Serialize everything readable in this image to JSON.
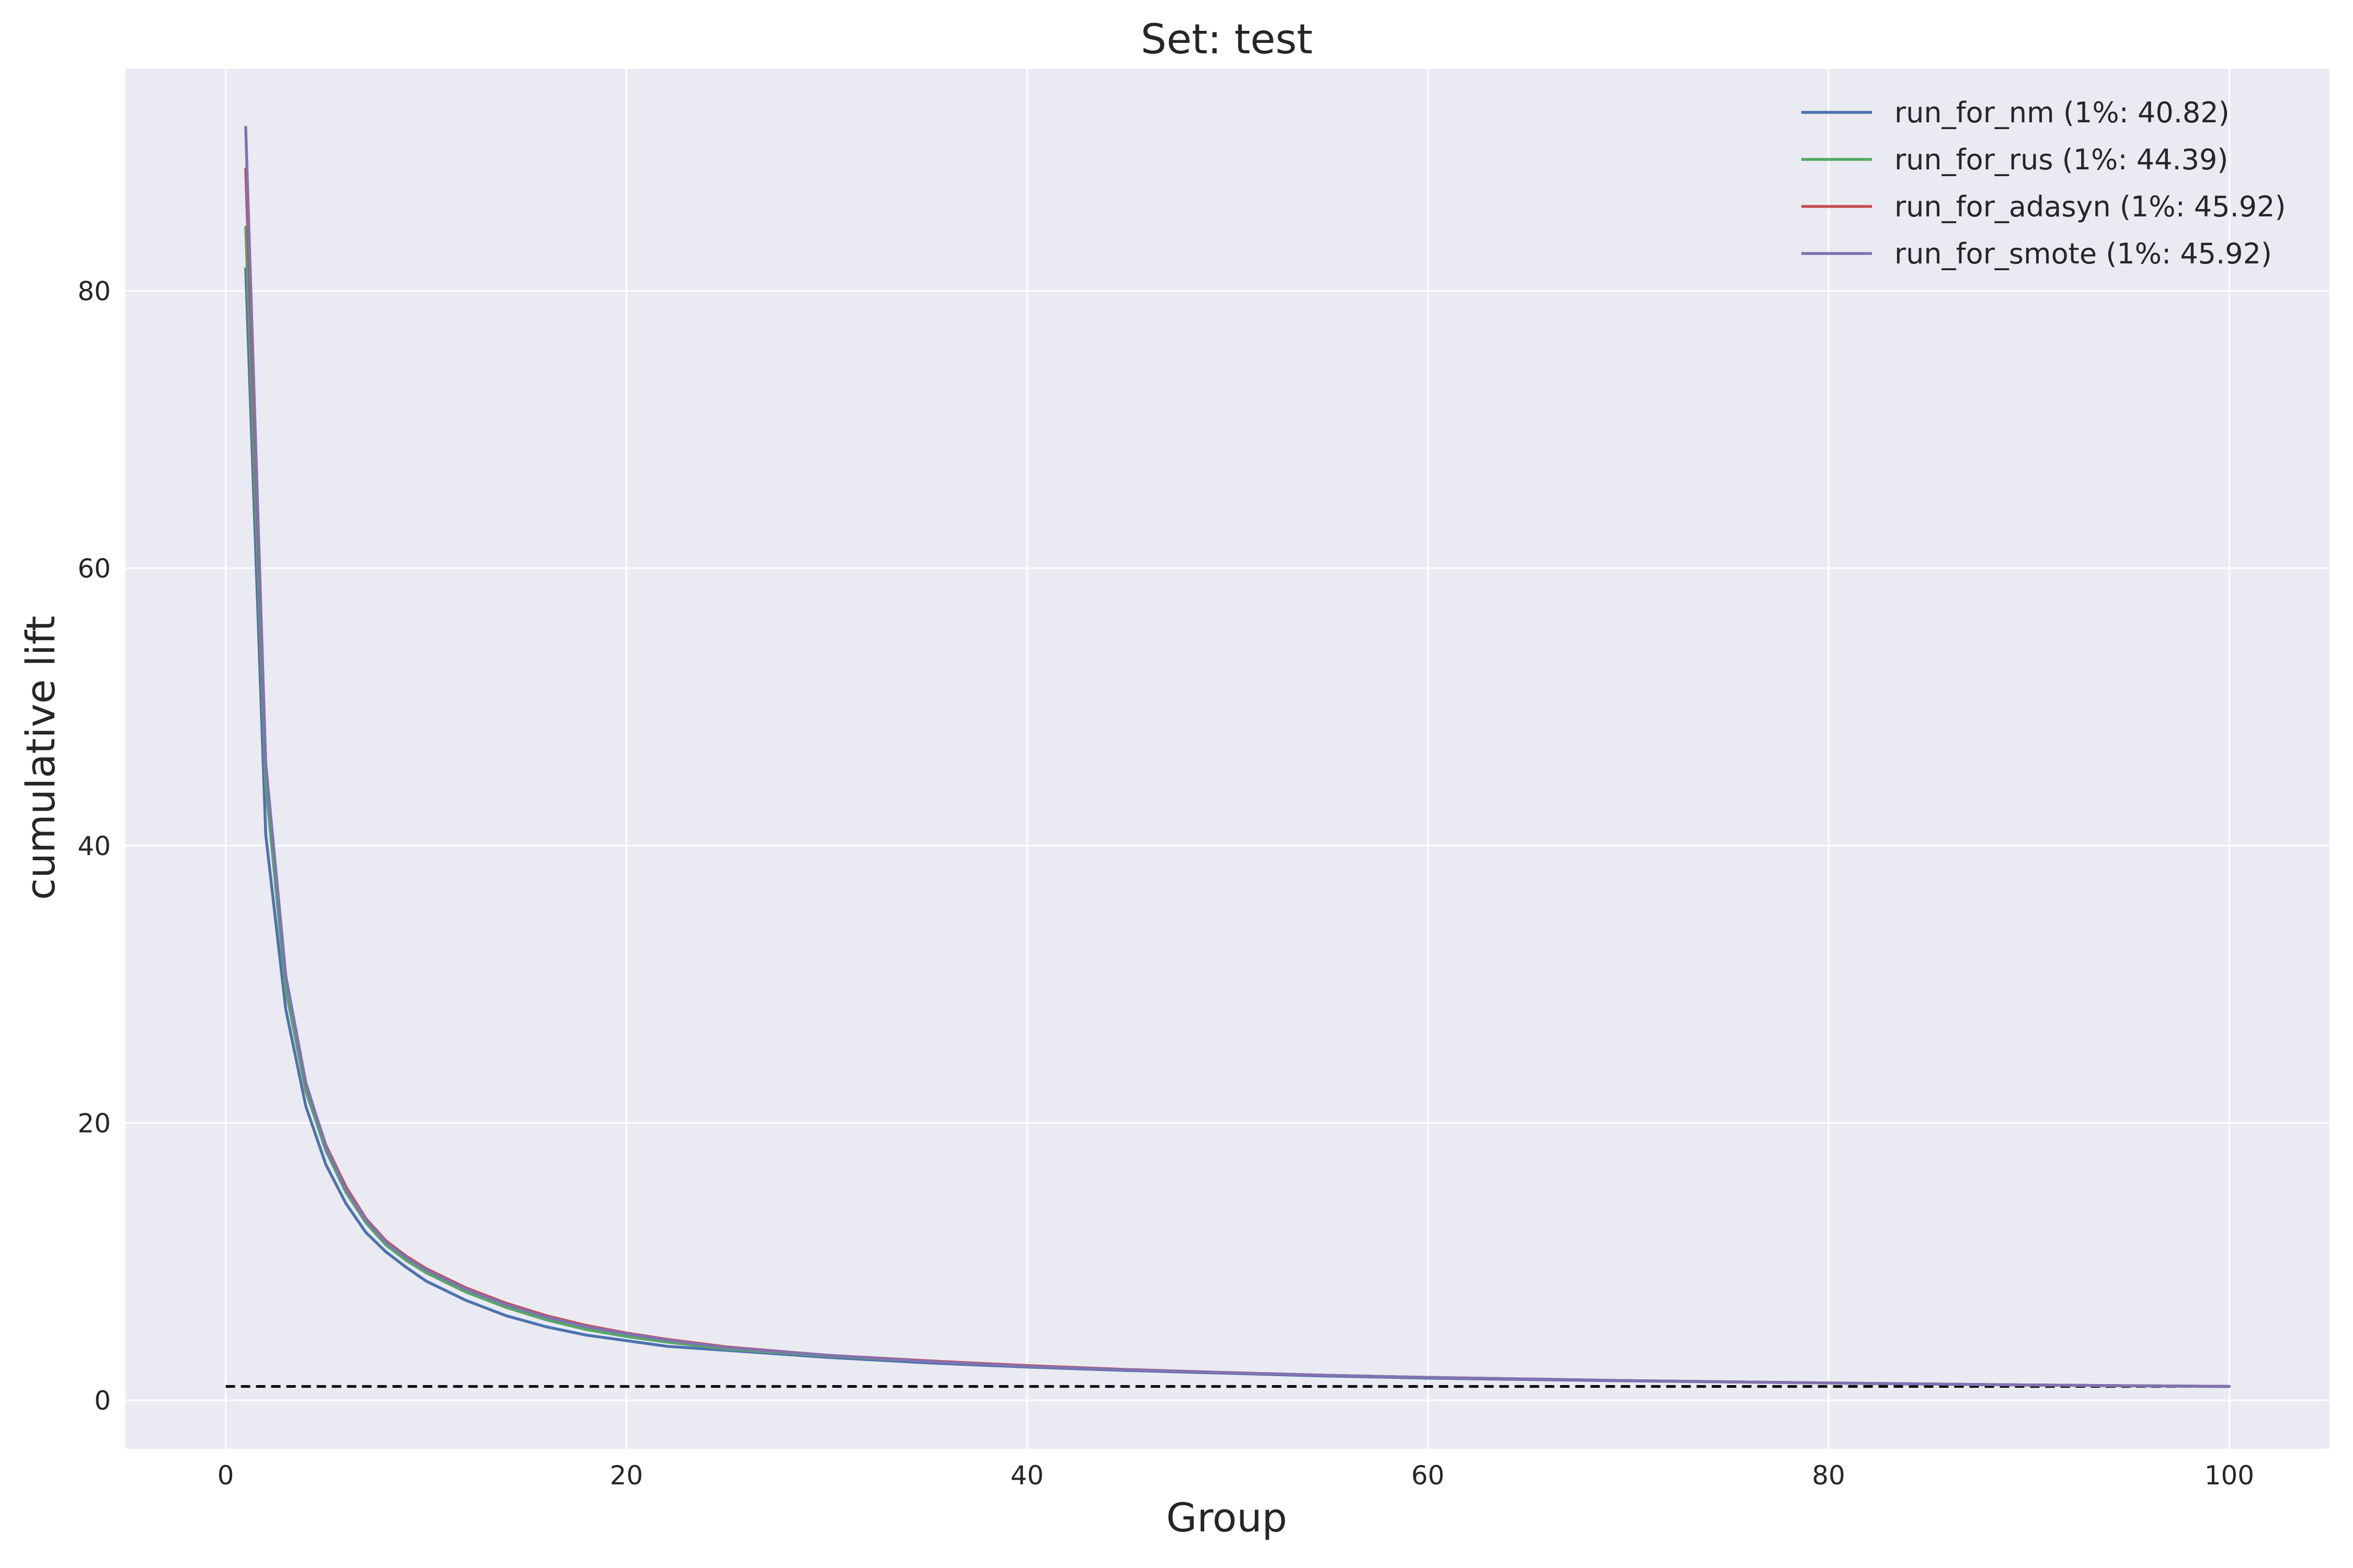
{
  "chart_data": {
    "type": "line",
    "title": "Set: test",
    "xlabel": "Group",
    "ylabel": "cumulative lift",
    "xlim": [
      -5,
      105
    ],
    "ylim": [
      -3.5,
      96
    ],
    "xticks": [
      0,
      20,
      40,
      60,
      80,
      100
    ],
    "yticks": [
      0,
      20,
      40,
      60,
      80
    ],
    "grid": true,
    "legend_position": "top-right",
    "baseline": {
      "y": 1,
      "x_range": [
        0,
        99
      ],
      "style": "dashed",
      "color": "#000000"
    },
    "series": [
      {
        "name": "run_for_nm (1%: 40.82)",
        "color": "#4C72B0",
        "x": [
          1,
          2,
          3,
          4,
          5,
          6,
          7,
          8,
          9,
          10,
          12,
          14,
          16,
          18,
          20,
          22,
          25,
          30,
          35,
          40,
          45,
          50,
          55,
          60,
          70,
          80,
          90,
          100
        ],
        "y": [
          81.6,
          40.8,
          28.2,
          21.2,
          17.0,
          14.2,
          12.1,
          10.7,
          9.6,
          8.6,
          7.2,
          6.1,
          5.3,
          4.7,
          4.3,
          3.9,
          3.6,
          3.1,
          2.7,
          2.4,
          2.15,
          1.95,
          1.75,
          1.6,
          1.4,
          1.25,
          1.1,
          1.0
        ]
      },
      {
        "name": "run_for_rus (1%: 44.39)",
        "color": "#55A868",
        "x": [
          1,
          2,
          3,
          4,
          5,
          6,
          7,
          8,
          9,
          10,
          12,
          14,
          16,
          18,
          20,
          22,
          25,
          30,
          35,
          40,
          45,
          50,
          55,
          60,
          70,
          80,
          90,
          100
        ],
        "y": [
          84.6,
          44.4,
          29.6,
          22.3,
          18.0,
          15.0,
          12.8,
          11.2,
          10.1,
          9.2,
          7.8,
          6.7,
          5.8,
          5.1,
          4.6,
          4.2,
          3.7,
          3.2,
          2.8,
          2.45,
          2.2,
          2.0,
          1.8,
          1.65,
          1.42,
          1.25,
          1.1,
          1.0
        ]
      },
      {
        "name": "run_for_adasyn (1%: 45.92)",
        "color": "#C44E52",
        "x": [
          1,
          2,
          3,
          4,
          5,
          6,
          7,
          8,
          9,
          10,
          12,
          14,
          16,
          18,
          20,
          22,
          25,
          30,
          35,
          40,
          45,
          50,
          55,
          60,
          70,
          80,
          90,
          100
        ],
        "y": [
          88.8,
          45.9,
          30.6,
          22.8,
          18.4,
          15.4,
          13.1,
          11.5,
          10.4,
          9.5,
          8.1,
          7.0,
          6.1,
          5.4,
          4.85,
          4.4,
          3.85,
          3.25,
          2.85,
          2.5,
          2.22,
          2.0,
          1.8,
          1.65,
          1.42,
          1.25,
          1.1,
          1.0
        ]
      },
      {
        "name": "run_for_smote (1%: 45.92)",
        "color": "#8172B2",
        "x": [
          1,
          2,
          3,
          4,
          5,
          6,
          7,
          8,
          9,
          10,
          12,
          14,
          16,
          18,
          20,
          22,
          25,
          30,
          35,
          40,
          45,
          50,
          55,
          60,
          70,
          80,
          90,
          100
        ],
        "y": [
          91.8,
          45.9,
          30.6,
          22.9,
          18.3,
          15.2,
          13.0,
          11.4,
          10.3,
          9.4,
          8.0,
          6.9,
          6.0,
          5.3,
          4.8,
          4.35,
          3.8,
          3.25,
          2.8,
          2.45,
          2.2,
          2.0,
          1.8,
          1.65,
          1.42,
          1.25,
          1.1,
          1.0
        ]
      }
    ]
  }
}
